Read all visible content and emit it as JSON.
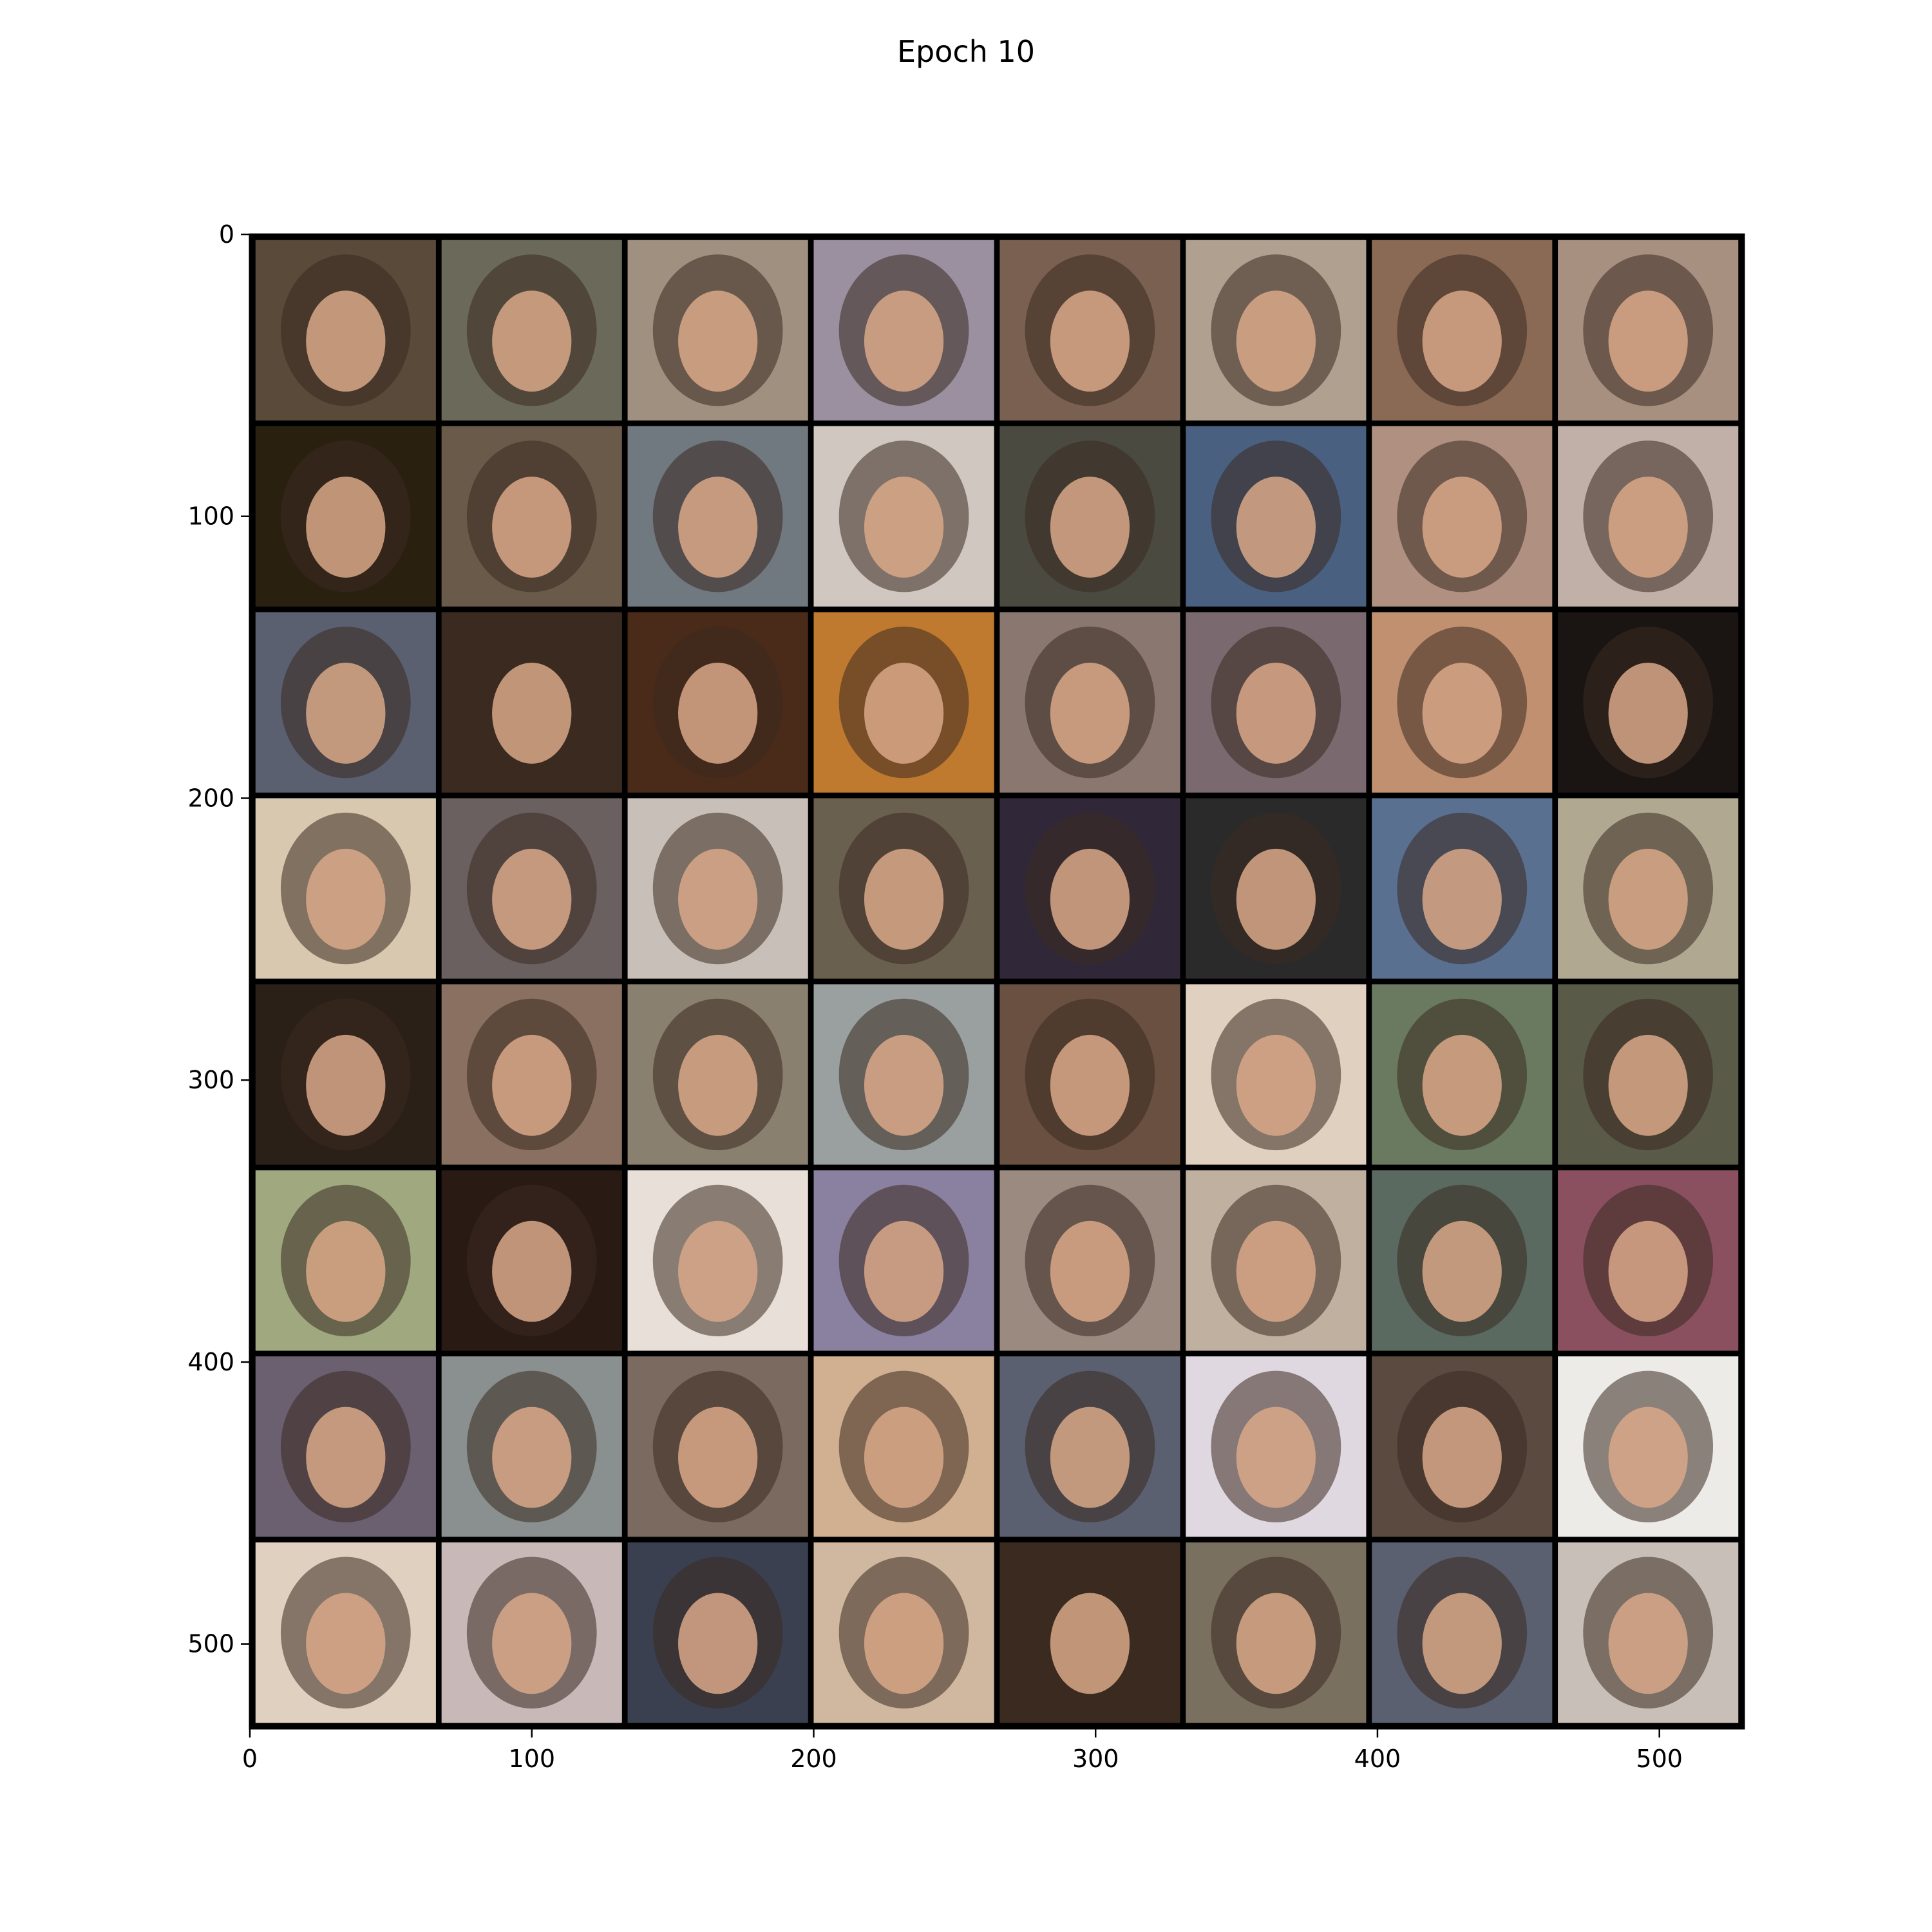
{
  "chart_data": {
    "type": "heatmap",
    "title": "Epoch 10",
    "xlabel": "",
    "ylabel": "",
    "xlim": [
      0,
      530
    ],
    "ylim": [
      530,
      0
    ],
    "x_ticks": [
      0,
      100,
      200,
      300,
      400,
      500
    ],
    "y_ticks": [
      0,
      100,
      200,
      300,
      400,
      500
    ],
    "x_tick_labels": [
      "0",
      "100",
      "200",
      "300",
      "400",
      "500"
    ],
    "y_tick_labels": [
      "0",
      "100",
      "200",
      "300",
      "400",
      "500"
    ],
    "grid": false,
    "image_grid": {
      "rows": 8,
      "cols": 8,
      "tile_size": 64,
      "padding": 2,
      "pad_color": "#000000",
      "content": "generated face samples",
      "tile_colors": [
        [
          "#5a4a3a",
          "#6b6a5a",
          "#a09080",
          "#9a90a0",
          "#7a6050",
          "#b0a090",
          "#8a6a55",
          "#a89080"
        ],
        [
          "#2a2010",
          "#6a5a4a",
          "#707880",
          "#d0c8c0",
          "#4a4a40",
          "#4a6080",
          "#b09080",
          "#c0b0a8"
        ],
        [
          "#5a6070",
          "#3a2a20",
          "#4a2a18",
          "#c07a30",
          "#8a7870",
          "#7a6a70",
          "#c09070",
          "#1a1412"
        ],
        [
          "#d8c8b0",
          "#6a6060",
          "#c8c0b8",
          "#6a6050",
          "#302838",
          "#2a2a2a",
          "#5a7090",
          "#b0a890"
        ],
        [
          "#2a2018",
          "#8a7060",
          "#8a8070",
          "#9aa0a0",
          "#6a5040",
          "#e0d0c0",
          "#6a7a60",
          "#5a5a48"
        ],
        [
          "#a0a880",
          "#2a1a14",
          "#e8e0d8",
          "#8a80a0",
          "#9a8a80",
          "#c0b0a0",
          "#5a6a60",
          "#8a5060"
        ],
        [
          "#6a6070",
          "#8a9090",
          "#7a6a60",
          "#d0b090",
          "#5a6070",
          "#e0d8e0",
          "#5a4a40",
          "#ecebe8"
        ],
        [
          "#e0d0c0",
          "#c8b8b8",
          "#3a4050",
          "#d0b8a0",
          "#3a2a20",
          "#7a7060",
          "#5a6070",
          "#c8c0b8"
        ]
      ]
    }
  }
}
